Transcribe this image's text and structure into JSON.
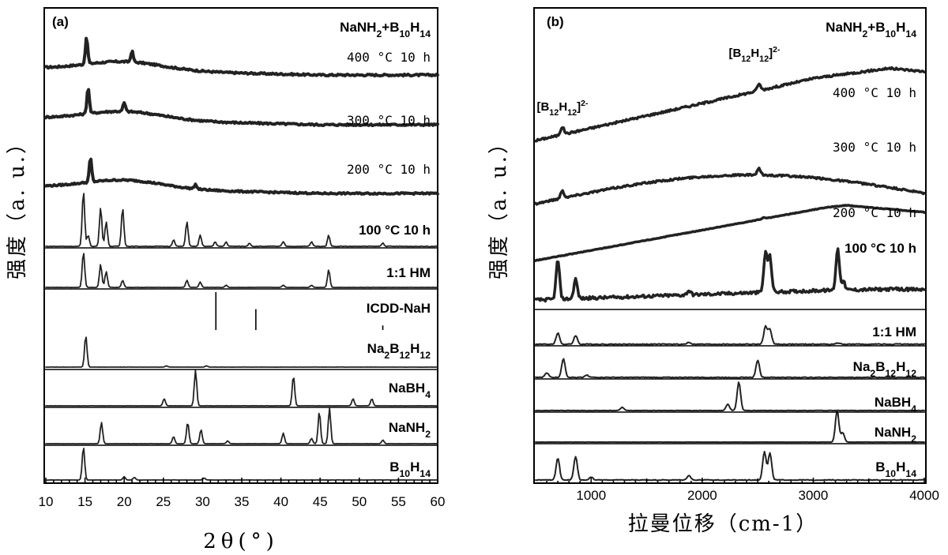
{
  "chart_data": [
    {
      "type": "line",
      "panel_label": "(a)",
      "xlabel": "2θ(°)",
      "ylabel": "强度（a. u.）",
      "xlim": [
        10,
        60
      ],
      "xticks": [
        10,
        15,
        20,
        25,
        30,
        35,
        40,
        45,
        50,
        55,
        60
      ],
      "grid": false,
      "header_label": "NaNH2+B10H14",
      "series": [
        {
          "name": "400 °C 10 h",
          "baseline": 0.06,
          "hump": 0.05,
          "noise": 0.35,
          "peaks": [
            [
              15.2,
              0.6
            ],
            [
              21,
              0.25
            ]
          ]
        },
        {
          "name": "300 °C 10 h",
          "baseline": 0.05,
          "hump": 0.05,
          "noise": 0.35,
          "peaks": [
            [
              15.4,
              0.6
            ],
            [
              20,
              0.2
            ]
          ]
        },
        {
          "name": "200 °C 10 h",
          "baseline": 0.05,
          "hump": 0.05,
          "noise": 0.3,
          "peaks": [
            [
              15.7,
              0.55
            ],
            [
              29.1,
              0.1
            ]
          ]
        },
        {
          "name": "100 °C 10 h",
          "baseline": 0.04,
          "hump": 0,
          "noise": 0.1,
          "peaks": [
            [
              14.8,
              1.0
            ],
            [
              15.4,
              0.2
            ],
            [
              17.0,
              0.7
            ],
            [
              17.7,
              0.45
            ],
            [
              19.8,
              0.7
            ],
            [
              26.3,
              0.12
            ],
            [
              28.0,
              0.45
            ],
            [
              29.7,
              0.2
            ],
            [
              31.6,
              0.08
            ],
            [
              33.0,
              0.08
            ],
            [
              36.0,
              0.06
            ],
            [
              40.3,
              0.08
            ],
            [
              43.9,
              0.08
            ],
            [
              46.1,
              0.2
            ],
            [
              53.0,
              0.06
            ]
          ]
        },
        {
          "name": "1:1 HM",
          "baseline": 0.03,
          "hump": 0,
          "noise": 0.05,
          "peaks": [
            [
              14.8,
              1.0
            ],
            [
              17.0,
              0.65
            ],
            [
              17.7,
              0.45
            ],
            [
              19.8,
              0.2
            ],
            [
              28.0,
              0.2
            ],
            [
              29.7,
              0.15
            ],
            [
              46.1,
              0.5
            ],
            [
              33.0,
              0.06
            ],
            [
              40.3,
              0.06
            ],
            [
              43.9,
              0.06
            ]
          ]
        },
        {
          "name": "ICDD-NaH",
          "sticks": [
            [
              31.7,
              1.0
            ],
            [
              36.8,
              0.55
            ],
            [
              53.0,
              0.12
            ]
          ]
        },
        {
          "name": "Na2B12H12",
          "baseline": 0.0,
          "hump": 0,
          "noise": 0.03,
          "peaks": [
            [
              15.1,
              1.0
            ],
            [
              25.4,
              0.04
            ],
            [
              30.5,
              0.04
            ]
          ]
        },
        {
          "name": "NaBH4",
          "baseline": 0.0,
          "hump": 0,
          "noise": 0.03,
          "peaks": [
            [
              25.1,
              0.2
            ],
            [
              29.1,
              1.0
            ],
            [
              41.6,
              0.85
            ],
            [
              49.2,
              0.2
            ],
            [
              51.6,
              0.2
            ]
          ]
        },
        {
          "name": "NaNH2",
          "baseline": 0.0,
          "hump": 0,
          "noise": 0.03,
          "peaks": [
            [
              17.1,
              0.6
            ],
            [
              26.3,
              0.2
            ],
            [
              28.1,
              0.6
            ],
            [
              29.8,
              0.4
            ],
            [
              33.2,
              0.08
            ],
            [
              40.3,
              0.3
            ],
            [
              43.9,
              0.15
            ],
            [
              44.9,
              0.9
            ],
            [
              46.2,
              1.0
            ],
            [
              53.0,
              0.1
            ]
          ]
        },
        {
          "name": "B10H14",
          "baseline": 0.0,
          "hump": 0,
          "noise": 0.03,
          "peaks": [
            [
              14.8,
              1.0
            ],
            [
              20.0,
              0.1
            ],
            [
              21.3,
              0.08
            ],
            [
              30.2,
              0.06
            ]
          ]
        }
      ]
    },
    {
      "type": "line",
      "panel_label": "(b)",
      "xlabel": "拉曼位移（cm-1）",
      "ylabel": "强度（a. u.）",
      "xlim": [
        500,
        4000
      ],
      "xticks": [
        1000,
        2000,
        3000,
        4000
      ],
      "grid": false,
      "header_label": "NaNH2+B10H14",
      "annotations": [
        {
          "text": "[B12H12]2-",
          "series": "400 °C 10 h",
          "x": 730
        },
        {
          "text": "[B12H12]2-",
          "series": "400 °C 10 h",
          "x": 2500
        }
      ],
      "series": [
        {
          "name": "400 °C 10 h",
          "start": 0.0,
          "rise": 1.0,
          "noise": 0.15,
          "peaks": [
            [
              740,
              0.35
            ],
            [
              2510,
              0.3
            ]
          ]
        },
        {
          "name": "300 °C 10 h",
          "start": 0.0,
          "rise": 0.75,
          "noise": 0.15,
          "peaks": [
            [
              740,
              0.35
            ],
            [
              2510,
              0.3
            ]
          ]
        },
        {
          "name": "200 °C 10 h",
          "start": 0.0,
          "rise": 0.8,
          "noise": 0.1,
          "peaks": [
            [
              2550,
              0.1
            ]
          ]
        },
        {
          "name": "100 °C 10 h",
          "start": 0.0,
          "rise": 0.25,
          "noise": 0.12,
          "peaks": [
            [
              700,
              0.9
            ],
            [
              860,
              0.45
            ],
            [
              1880,
              0.1
            ],
            [
              2570,
              0.9
            ],
            [
              2610,
              0.8
            ],
            [
              3220,
              0.95
            ],
            [
              3270,
              0.2
            ]
          ]
        },
        {
          "name": "1:1 HM",
          "start": 0.0,
          "rise": 0.0,
          "noise": 0.06,
          "peaks": [
            [
              700,
              0.45
            ],
            [
              860,
              0.35
            ],
            [
              1880,
              0.08
            ],
            [
              2570,
              0.7
            ],
            [
              2610,
              0.6
            ],
            [
              3220,
              0.05
            ]
          ]
        },
        {
          "name": "Na2B12H12",
          "start": 0.0,
          "rise": 0.0,
          "noise": 0.04,
          "peaks": [
            [
              600,
              0.15
            ],
            [
              750,
              0.6
            ],
            [
              960,
              0.08
            ],
            [
              2500,
              0.55
            ]
          ]
        },
        {
          "name": "NaBH4",
          "start": 0.0,
          "rise": 0.0,
          "noise": 0.02,
          "peaks": [
            [
              1280,
              0.1
            ],
            [
              2230,
              0.2
            ],
            [
              2330,
              0.9
            ]
          ]
        },
        {
          "name": "NaNH2",
          "start": 0.0,
          "rise": 0.0,
          "noise": 0.01,
          "peaks": [
            [
              3215,
              1.0
            ],
            [
              3265,
              0.3
            ]
          ]
        },
        {
          "name": "B10H14",
          "start": 0.0,
          "rise": 0.0,
          "noise": 0.04,
          "peaks": [
            [
              700,
              0.7
            ],
            [
              860,
              0.75
            ],
            [
              1000,
              0.1
            ],
            [
              1880,
              0.15
            ],
            [
              2560,
              0.9
            ],
            [
              2610,
              0.85
            ]
          ]
        }
      ]
    }
  ]
}
